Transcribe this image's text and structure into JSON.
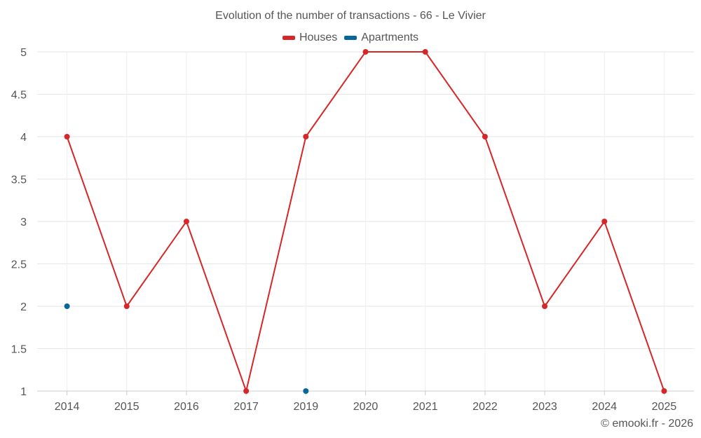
{
  "chart_data": {
    "type": "line",
    "title": "Evolution of the number of transactions - 66 - Le Vivier",
    "categories": [
      "2014",
      "2015",
      "2016",
      "2017",
      "2019",
      "2020",
      "2021",
      "2022",
      "2023",
      "2024",
      "2025"
    ],
    "series": [
      {
        "name": "Houses",
        "color": "#d62728",
        "values": [
          4,
          2,
          3,
          1,
          4,
          5,
          5,
          4,
          2,
          3,
          1
        ],
        "connect": true
      },
      {
        "name": "Apartments",
        "color": "#06679c",
        "values": [
          2,
          null,
          null,
          null,
          1,
          null,
          null,
          null,
          null,
          null,
          null
        ],
        "connect": false
      }
    ],
    "y_ticks": [
      "1",
      "1.5",
      "2",
      "2.5",
      "3",
      "3.5",
      "4",
      "4.5",
      "5"
    ],
    "ylim": [
      1,
      5
    ],
    "xlabel": "",
    "ylabel": "",
    "grid": true,
    "legend_position": "top-center"
  },
  "credit": "© emooki.fr - 2026"
}
